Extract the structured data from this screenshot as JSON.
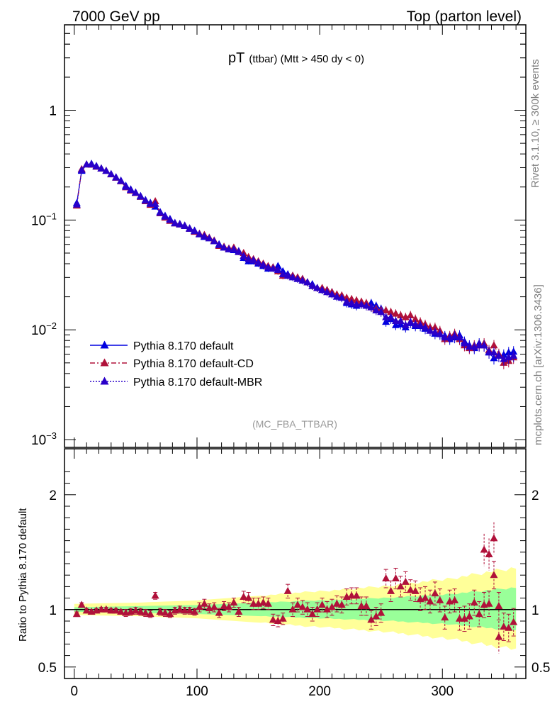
{
  "header": {
    "left": "7000 GeV pp",
    "right": "Top (parton level)"
  },
  "plot_title": {
    "main": "pT",
    "sub": "(ttbar) (Mtt > 450 dy < 0)"
  },
  "side_labels": {
    "rivet": "Rivet 3.1.10, ≥ 300k events",
    "mcplots": "mcplots.cern.ch [arXiv:1306.3436]"
  },
  "analysis_tag": "(MC_FBA_TTBAR)",
  "ratio_ylabel": "Ratio to Pythia 8.170 default",
  "legend": [
    {
      "label": "Pythia 8.170 default",
      "color": "#0000e0",
      "style": "solid"
    },
    {
      "label": "Pythia 8.170 default-CD",
      "color": "#b0113a",
      "style": "dashdot"
    },
    {
      "label": "Pythia 8.170 default-MBR",
      "color": "#2a00c8",
      "style": "dotted"
    }
  ],
  "chart_data": {
    "type": "line",
    "xlim": [
      -8,
      368
    ],
    "x_ticks": [
      0,
      100,
      200,
      300
    ],
    "main": {
      "yscale": "log",
      "ylim": [
        0.00085,
        6
      ],
      "y_ticks": [
        {
          "value": 1,
          "base": "1",
          "exp": ""
        },
        {
          "value": 0.1,
          "base": "10",
          "exp": "−1"
        },
        {
          "value": 0.01,
          "base": "10",
          "exp": "−2"
        },
        {
          "value": 0.001,
          "base": "10",
          "exp": "−3"
        }
      ],
      "x": [
        2,
        6,
        10,
        14,
        18,
        22,
        26,
        30,
        34,
        38,
        42,
        46,
        50,
        54,
        58,
        62,
        66,
        70,
        74,
        78,
        82,
        86,
        90,
        94,
        98,
        102,
        106,
        110,
        114,
        118,
        122,
        126,
        130,
        134,
        138,
        142,
        146,
        150,
        154,
        158,
        162,
        166,
        170,
        174,
        178,
        182,
        186,
        190,
        194,
        198,
        202,
        206,
        210,
        214,
        218,
        222,
        226,
        230,
        234,
        238,
        242,
        246,
        250,
        254,
        258,
        262,
        266,
        270,
        274,
        278,
        282,
        286,
        290,
        294,
        298,
        302,
        306,
        310,
        314,
        318,
        322,
        326,
        330,
        334,
        338,
        342,
        346,
        350,
        354,
        358
      ],
      "series": [
        {
          "name": "Pythia 8.170 default",
          "color": "#0000e0",
          "values": [
            0.142,
            0.28,
            0.32,
            0.325,
            0.31,
            0.295,
            0.28,
            0.262,
            0.245,
            0.228,
            0.205,
            0.19,
            0.178,
            0.165,
            0.152,
            0.143,
            0.132,
            0.118,
            0.109,
            0.102,
            0.094,
            0.092,
            0.089,
            0.084,
            0.08,
            0.074,
            0.07,
            0.068,
            0.064,
            0.06,
            0.056,
            0.054,
            0.053,
            0.052,
            0.045,
            0.042,
            0.042,
            0.04,
            0.038,
            0.036,
            0.037,
            0.038,
            0.034,
            0.032,
            0.031,
            0.029,
            0.029,
            0.027,
            0.026,
            0.024,
            0.023,
            0.023,
            0.022,
            0.02,
            0.0198,
            0.0175,
            0.017,
            0.0165,
            0.0175,
            0.017,
            0.0175,
            0.0165,
            0.0155,
            0.0118,
            0.0125,
            0.011,
            0.0112,
            0.0105,
            0.0115,
            0.0108,
            0.0108,
            0.0102,
            0.0098,
            0.0092,
            0.0091,
            0.0088,
            0.0082,
            0.0085,
            0.0089,
            0.0078,
            0.0072,
            0.0068,
            0.0075,
            0.0072,
            0.0062,
            0.0055,
            0.0058,
            0.0059,
            0.0062,
            0.0063
          ]
        },
        {
          "name": "Pythia 8.170 default-CD",
          "color": "#b0113a",
          "values": [
            0.135,
            0.29,
            0.32,
            0.318,
            0.305,
            0.293,
            0.28,
            0.26,
            0.242,
            0.225,
            0.198,
            0.185,
            0.176,
            0.162,
            0.148,
            0.137,
            0.148,
            0.115,
            0.105,
            0.098,
            0.093,
            0.091,
            0.088,
            0.083,
            0.078,
            0.075,
            0.073,
            0.069,
            0.065,
            0.058,
            0.057,
            0.055,
            0.056,
            0.051,
            0.05,
            0.046,
            0.044,
            0.042,
            0.04,
            0.038,
            0.037,
            0.034,
            0.031,
            0.031,
            0.031,
            0.03,
            0.029,
            0.027,
            0.025,
            0.024,
            0.024,
            0.023,
            0.022,
            0.021,
            0.0205,
            0.0195,
            0.019,
            0.0185,
            0.018,
            0.0175,
            0.016,
            0.0155,
            0.015,
            0.015,
            0.0145,
            0.014,
            0.0135,
            0.013,
            0.0135,
            0.0125,
            0.0118,
            0.0112,
            0.0105,
            0.0105,
            0.0098,
            0.0082,
            0.0088,
            0.0092,
            0.0082,
            0.0072,
            0.0068,
            0.0072,
            0.0072,
            0.0075,
            0.0065,
            0.0072,
            0.006,
            0.005,
            0.0052,
            0.0056
          ]
        },
        {
          "name": "Pythia 8.170 default-MBR",
          "color": "#2a00c8",
          "values": [
            0.138,
            0.285,
            0.32,
            0.32,
            0.307,
            0.294,
            0.28,
            0.261,
            0.243,
            0.226,
            0.2,
            0.187,
            0.177,
            0.163,
            0.15,
            0.14,
            0.14,
            0.116,
            0.107,
            0.1,
            0.093,
            0.091,
            0.088,
            0.083,
            0.079,
            0.074,
            0.071,
            0.068,
            0.064,
            0.059,
            0.056,
            0.054,
            0.054,
            0.051,
            0.047,
            0.044,
            0.043,
            0.041,
            0.039,
            0.037,
            0.036,
            0.035,
            0.032,
            0.031,
            0.03,
            0.029,
            0.028,
            0.027,
            0.025,
            0.024,
            0.023,
            0.022,
            0.021,
            0.02,
            0.0195,
            0.018,
            0.0175,
            0.017,
            0.017,
            0.0165,
            0.016,
            0.015,
            0.0145,
            0.013,
            0.013,
            0.012,
            0.012,
            0.011,
            0.0118,
            0.0112,
            0.011,
            0.0105,
            0.0098,
            0.0095,
            0.0092,
            0.0085,
            0.0085,
            0.0088,
            0.0085,
            0.0075,
            0.007,
            0.007,
            0.0072,
            0.0072,
            0.0063,
            0.0062,
            0.0058,
            0.0054,
            0.0056,
            0.0058
          ]
        }
      ]
    },
    "ratio": {
      "ylim": [
        0.4,
        2.4
      ],
      "y_ticks": [
        0.5,
        1,
        2
      ],
      "reference": 1,
      "band_x_edges": [
        0,
        50,
        100,
        150,
        200,
        250,
        300,
        340,
        360
      ],
      "band_yellow_halfwidth": [
        0.05,
        0.06,
        0.08,
        0.12,
        0.16,
        0.2,
        0.26,
        0.33,
        0.36
      ],
      "band_green_halfwidth": [
        0.02,
        0.03,
        0.04,
        0.06,
        0.08,
        0.1,
        0.13,
        0.17,
        0.19
      ],
      "band_colors": {
        "yellow": "#ffff99",
        "green": "#99ff99"
      },
      "points_x": [
        2,
        6,
        10,
        14,
        18,
        22,
        26,
        30,
        34,
        38,
        42,
        46,
        50,
        54,
        58,
        62,
        66,
        70,
        74,
        78,
        82,
        86,
        90,
        94,
        98,
        102,
        106,
        110,
        114,
        118,
        122,
        126,
        130,
        134,
        138,
        142,
        146,
        150,
        154,
        158,
        162,
        166,
        170,
        174,
        178,
        182,
        186,
        190,
        194,
        198,
        202,
        206,
        210,
        214,
        218,
        222,
        226,
        230,
        234,
        238,
        242,
        246,
        250,
        254,
        258,
        262,
        266,
        270,
        274,
        278,
        282,
        286,
        290,
        294,
        298,
        302,
        306,
        310,
        314,
        318,
        322,
        326,
        330,
        334,
        338,
        342,
        346,
        350,
        354,
        358
      ],
      "points_y": [
        0.96,
        1.04,
        0.99,
        0.98,
        0.99,
        1.0,
        1.0,
        0.99,
        0.99,
        0.98,
        0.97,
        0.98,
        0.99,
        0.98,
        0.97,
        0.96,
        1.12,
        0.98,
        0.97,
        0.96,
        0.99,
        1.0,
        0.99,
        0.99,
        0.98,
        1.02,
        1.05,
        1.01,
        1.02,
        0.97,
        1.03,
        1.02,
        1.06,
        0.98,
        1.11,
        1.1,
        1.05,
        1.05,
        1.06,
        1.05,
        0.91,
        0.9,
        0.92,
        1.16,
        1.0,
        1.04,
        1.02,
        1.0,
        0.96,
        1.0,
        1.04,
        1.0,
        1.02,
        1.05,
        1.04,
        1.11,
        1.12,
        1.12,
        1.03,
        1.03,
        0.91,
        0.94,
        0.97,
        1.27,
        1.16,
        1.27,
        1.2,
        1.24,
        1.17,
        1.16,
        1.09,
        1.1,
        1.07,
        1.14,
        1.08,
        0.93,
        1.07,
        1.08,
        0.92,
        0.92,
        0.94,
        1.06,
        0.96,
        1.04,
        1.05,
        1.3,
        1.03,
        0.85,
        0.84,
        0.89
      ],
      "points_err": [
        0.02,
        0.02,
        0.02,
        0.02,
        0.02,
        0.02,
        0.02,
        0.02,
        0.02,
        0.02,
        0.03,
        0.03,
        0.03,
        0.03,
        0.03,
        0.03,
        0.03,
        0.03,
        0.03,
        0.03,
        0.03,
        0.03,
        0.03,
        0.03,
        0.03,
        0.04,
        0.04,
        0.04,
        0.04,
        0.04,
        0.04,
        0.04,
        0.04,
        0.04,
        0.05,
        0.05,
        0.05,
        0.05,
        0.05,
        0.05,
        0.05,
        0.05,
        0.05,
        0.06,
        0.06,
        0.06,
        0.06,
        0.06,
        0.06,
        0.06,
        0.06,
        0.07,
        0.07,
        0.07,
        0.07,
        0.07,
        0.07,
        0.07,
        0.08,
        0.08,
        0.08,
        0.08,
        0.08,
        0.08,
        0.09,
        0.09,
        0.09,
        0.09,
        0.09,
        0.09,
        0.1,
        0.1,
        0.1,
        0.1,
        0.1,
        0.1,
        0.1,
        0.1,
        0.1,
        0.11,
        0.11,
        0.11,
        0.11,
        0.11,
        0.11,
        0.12,
        0.12,
        0.12,
        0.12,
        0.12
      ],
      "extra_points": [
        [
          342,
          1.62
        ],
        [
          346,
          0.76
        ],
        [
          334,
          1.52
        ],
        [
          338,
          1.48
        ]
      ],
      "color": "#b0113a"
    }
  }
}
